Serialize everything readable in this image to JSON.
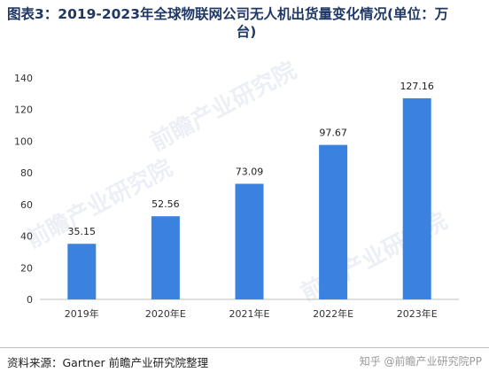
{
  "title_line1": "图表3：2019-2023年全球物联网公司无人机出货量变化情况(单位：万",
  "title_line2": "台)",
  "source": "资料来源：Gartner 前瞻产业研究院整理",
  "watermark": "知乎 @前瞻产业研究院PP",
  "bg_watermark": "前瞻产业研究院",
  "colors": {
    "bar": "#3b82e0",
    "title": "#1f3864",
    "axis": "#bfbfbf"
  },
  "chart_data": {
    "type": "bar",
    "categories": [
      "2019年",
      "2020年E",
      "2021年E",
      "2022年E",
      "2023年E"
    ],
    "values": [
      35.15,
      52.56,
      73.09,
      97.67,
      127.16
    ],
    "value_labels": [
      "35.15",
      "52.56",
      "73.09",
      "97.67",
      "127.16"
    ],
    "title": "图表3：2019-2023年全球物联网公司无人机出货量变化情况(单位：万台)",
    "xlabel": "",
    "ylabel": "",
    "ylim": [
      0,
      140
    ],
    "yticks": [
      0,
      20,
      40,
      60,
      80,
      100,
      120,
      140
    ],
    "grid": false,
    "legend": "none"
  }
}
